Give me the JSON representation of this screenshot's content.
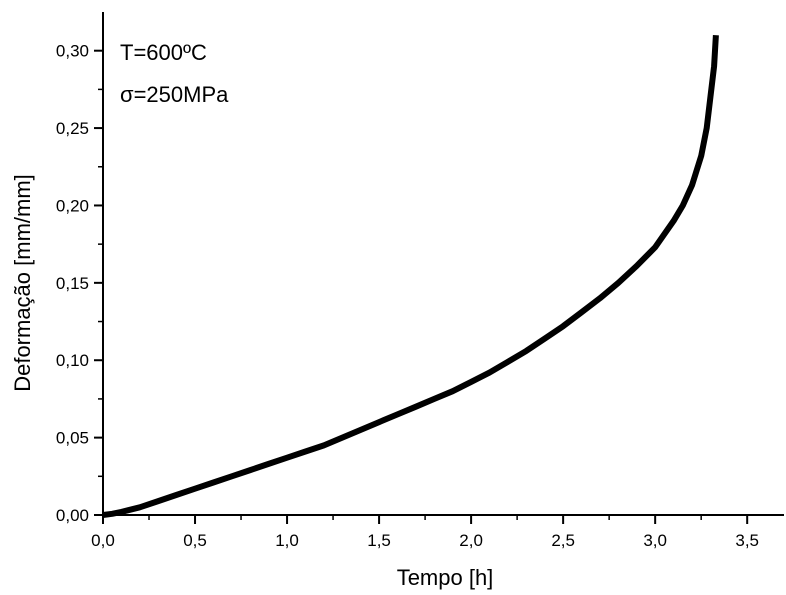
{
  "chart_data": {
    "type": "line",
    "title": "",
    "xlabel": "Tempo [h]",
    "ylabel": "Deformação [mm/mm]",
    "xlim": [
      0.0,
      3.7
    ],
    "ylim": [
      0.0,
      0.325
    ],
    "xticks": [
      0.0,
      0.5,
      1.0,
      1.5,
      2.0,
      2.5,
      3.0,
      3.5
    ],
    "xtick_labels": [
      "0,0",
      "0,5",
      "1,0",
      "1,5",
      "2,0",
      "2,5",
      "3,0",
      "3,5"
    ],
    "yticks": [
      0.0,
      0.05,
      0.1,
      0.15,
      0.2,
      0.25,
      0.3
    ],
    "ytick_labels": [
      "0,00",
      "0,05",
      "0,10",
      "0,15",
      "0,20",
      "0,25",
      "0,30"
    ],
    "annotations": [
      "T=600ºC",
      "σ=250MPa"
    ],
    "grid": false,
    "legend": "none",
    "line_color": "#000000",
    "series": [
      {
        "x": [
          0.0,
          0.05,
          0.1,
          0.2,
          0.3,
          0.4,
          0.5,
          0.6,
          0.7,
          0.8,
          0.9,
          1.0,
          1.1,
          1.2,
          1.3,
          1.4,
          1.5,
          1.6,
          1.7,
          1.8,
          1.9,
          2.0,
          2.1,
          2.2,
          2.3,
          2.4,
          2.5,
          2.6,
          2.7,
          2.8,
          2.9,
          3.0,
          3.1,
          3.15,
          3.2,
          3.25,
          3.28,
          3.3,
          3.32,
          3.33
        ],
        "y": [
          0.0,
          0.0008,
          0.002,
          0.005,
          0.009,
          0.013,
          0.017,
          0.021,
          0.025,
          0.029,
          0.033,
          0.037,
          0.041,
          0.045,
          0.05,
          0.055,
          0.06,
          0.065,
          0.07,
          0.075,
          0.08,
          0.086,
          0.092,
          0.099,
          0.106,
          0.114,
          0.122,
          0.131,
          0.14,
          0.15,
          0.161,
          0.173,
          0.19,
          0.2,
          0.213,
          0.232,
          0.25,
          0.27,
          0.29,
          0.31
        ]
      }
    ]
  }
}
